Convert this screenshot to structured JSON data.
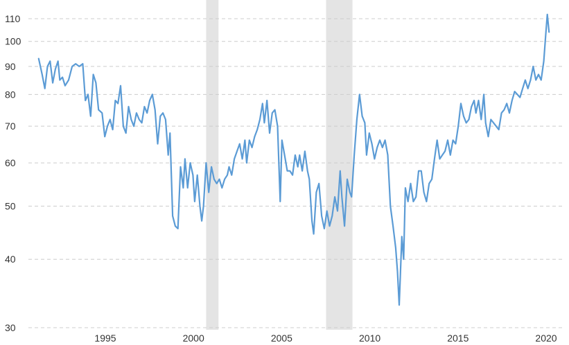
{
  "chart_data": {
    "type": "line",
    "title": "",
    "xlabel": "",
    "ylabel": "",
    "y_scale": "log",
    "ylim": [
      30,
      115
    ],
    "xlim": [
      1990.8,
      2020.0
    ],
    "y_ticks": [
      {
        "value": 30,
        "label": "30"
      },
      {
        "value": 40,
        "label": "40"
      },
      {
        "value": 50,
        "label": "50"
      },
      {
        "value": 60,
        "label": "60"
      },
      {
        "value": 70,
        "label": "70"
      },
      {
        "value": 80,
        "label": "80"
      },
      {
        "value": 90,
        "label": "90"
      },
      {
        "value": 100,
        "label": "100"
      },
      {
        "value": 110,
        "label": "110"
      }
    ],
    "x_ticks": [
      {
        "value": 1995,
        "label": "1995"
      },
      {
        "value": 2000,
        "label": "2000"
      },
      {
        "value": 2005,
        "label": "2005"
      },
      {
        "value": 2010,
        "label": "2010"
      },
      {
        "value": 2015,
        "label": "2015"
      },
      {
        "value": 2020,
        "label": "2020"
      }
    ],
    "grid": "horizontal dashed",
    "line_color": "#5b9bd5",
    "shade_color": "#e4e4e4",
    "shaded_periods": [
      {
        "start": 2000.3,
        "end": 2001.0
      },
      {
        "start": 2007.1,
        "end": 2008.6
      }
    ],
    "series": [
      {
        "values": [
          [
            1990.8,
            93
          ],
          [
            1991.0,
            87
          ],
          [
            1991.15,
            82
          ],
          [
            1991.3,
            90
          ],
          [
            1991.45,
            92
          ],
          [
            1991.6,
            84
          ],
          [
            1991.75,
            89
          ],
          [
            1991.9,
            92
          ],
          [
            1992.0,
            85
          ],
          [
            1992.15,
            86
          ],
          [
            1992.3,
            83
          ],
          [
            1992.5,
            85
          ],
          [
            1992.7,
            90
          ],
          [
            1992.9,
            91
          ],
          [
            1993.1,
            90
          ],
          [
            1993.3,
            91
          ],
          [
            1993.45,
            78
          ],
          [
            1993.6,
            80
          ],
          [
            1993.75,
            73
          ],
          [
            1993.9,
            87
          ],
          [
            1994.05,
            84
          ],
          [
            1994.2,
            75
          ],
          [
            1994.4,
            74
          ],
          [
            1994.55,
            67
          ],
          [
            1994.7,
            70
          ],
          [
            1994.85,
            72
          ],
          [
            1995.0,
            69
          ],
          [
            1995.15,
            78
          ],
          [
            1995.3,
            77
          ],
          [
            1995.45,
            83
          ],
          [
            1995.6,
            70
          ],
          [
            1995.75,
            68
          ],
          [
            1995.9,
            76
          ],
          [
            1996.05,
            72
          ],
          [
            1996.2,
            70
          ],
          [
            1996.35,
            74
          ],
          [
            1996.5,
            72
          ],
          [
            1996.65,
            71
          ],
          [
            1996.8,
            76
          ],
          [
            1996.95,
            74
          ],
          [
            1997.1,
            78
          ],
          [
            1997.25,
            80
          ],
          [
            1997.4,
            75
          ],
          [
            1997.55,
            65
          ],
          [
            1997.7,
            73
          ],
          [
            1997.85,
            74
          ],
          [
            1998.0,
            72
          ],
          [
            1998.15,
            62
          ],
          [
            1998.25,
            68
          ],
          [
            1998.4,
            48
          ],
          [
            1998.55,
            46
          ],
          [
            1998.7,
            45.5
          ],
          [
            1998.85,
            59
          ],
          [
            1999.0,
            54
          ],
          [
            1999.1,
            61
          ],
          [
            1999.25,
            54
          ],
          [
            1999.4,
            60
          ],
          [
            1999.55,
            57
          ],
          [
            1999.65,
            51
          ],
          [
            1999.8,
            57
          ],
          [
            1999.95,
            50
          ],
          [
            2000.05,
            47
          ],
          [
            2000.15,
            50
          ],
          [
            2000.3,
            60
          ],
          [
            2000.45,
            53
          ],
          [
            2000.6,
            59
          ],
          [
            2000.75,
            56
          ],
          [
            2000.9,
            55
          ],
          [
            2001.05,
            56
          ],
          [
            2001.2,
            54
          ],
          [
            2001.35,
            56
          ],
          [
            2001.5,
            57
          ],
          [
            2001.6,
            59
          ],
          [
            2001.75,
            57
          ],
          [
            2001.9,
            61
          ],
          [
            2002.05,
            63
          ],
          [
            2002.2,
            65
          ],
          [
            2002.35,
            61
          ],
          [
            2002.5,
            66
          ],
          [
            2002.6,
            60
          ],
          [
            2002.75,
            66
          ],
          [
            2002.9,
            64
          ],
          [
            2003.05,
            67
          ],
          [
            2003.2,
            69
          ],
          [
            2003.35,
            72
          ],
          [
            2003.5,
            77
          ],
          [
            2003.6,
            71
          ],
          [
            2003.75,
            78
          ],
          [
            2003.9,
            68
          ],
          [
            2004.05,
            74
          ],
          [
            2004.2,
            75
          ],
          [
            2004.35,
            70
          ],
          [
            2004.5,
            51
          ],
          [
            2004.6,
            66
          ],
          [
            2004.75,
            62
          ],
          [
            2004.9,
            58
          ],
          [
            2005.05,
            58
          ],
          [
            2005.2,
            57
          ],
          [
            2005.35,
            62
          ],
          [
            2005.5,
            59
          ],
          [
            2005.6,
            62
          ],
          [
            2005.75,
            58
          ],
          [
            2005.9,
            63
          ],
          [
            2006.05,
            58
          ],
          [
            2006.15,
            56
          ],
          [
            2006.3,
            47
          ],
          [
            2006.4,
            44.5
          ],
          [
            2006.55,
            53
          ],
          [
            2006.7,
            55
          ],
          [
            2006.85,
            48
          ],
          [
            2007.0,
            45.5
          ],
          [
            2007.15,
            49
          ],
          [
            2007.3,
            46
          ],
          [
            2007.45,
            48
          ],
          [
            2007.6,
            52
          ],
          [
            2007.75,
            49
          ],
          [
            2007.9,
            58
          ],
          [
            2008.0,
            52
          ],
          [
            2008.15,
            46
          ],
          [
            2008.3,
            56
          ],
          [
            2008.45,
            53
          ],
          [
            2008.55,
            52
          ],
          [
            2008.7,
            62
          ],
          [
            2008.85,
            72
          ],
          [
            2009.0,
            80
          ],
          [
            2009.15,
            73
          ],
          [
            2009.3,
            71
          ],
          [
            2009.4,
            62
          ],
          [
            2009.55,
            68
          ],
          [
            2009.7,
            65
          ],
          [
            2009.85,
            61
          ],
          [
            2010.0,
            64
          ],
          [
            2010.15,
            66
          ],
          [
            2010.3,
            64
          ],
          [
            2010.45,
            66
          ],
          [
            2010.6,
            62
          ],
          [
            2010.75,
            50
          ],
          [
            2010.9,
            46
          ],
          [
            2011.05,
            42
          ],
          [
            2011.15,
            38
          ],
          [
            2011.25,
            33
          ],
          [
            2011.4,
            44
          ],
          [
            2011.5,
            40
          ],
          [
            2011.6,
            54
          ],
          [
            2011.75,
            51
          ],
          [
            2011.9,
            55
          ],
          [
            2012.05,
            51
          ],
          [
            2012.2,
            52
          ],
          [
            2012.35,
            58
          ],
          [
            2012.5,
            58
          ],
          [
            2012.65,
            53
          ],
          [
            2012.8,
            51
          ],
          [
            2012.95,
            55
          ],
          [
            2013.1,
            56
          ],
          [
            2013.25,
            61
          ],
          [
            2013.4,
            66
          ],
          [
            2013.55,
            61
          ],
          [
            2013.7,
            62
          ],
          [
            2013.85,
            63
          ],
          [
            2014.0,
            66
          ],
          [
            2014.15,
            62
          ],
          [
            2014.3,
            66
          ],
          [
            2014.45,
            65
          ],
          [
            2014.6,
            70
          ],
          [
            2014.75,
            77
          ],
          [
            2014.9,
            73
          ],
          [
            2015.05,
            71
          ],
          [
            2015.2,
            72
          ],
          [
            2015.35,
            76
          ],
          [
            2015.5,
            78
          ],
          [
            2015.6,
            74
          ],
          [
            2015.75,
            78
          ],
          [
            2015.9,
            72
          ],
          [
            2016.05,
            80
          ],
          [
            2016.15,
            71
          ],
          [
            2016.3,
            67
          ],
          [
            2016.45,
            72
          ],
          [
            2016.6,
            71
          ],
          [
            2016.75,
            70
          ],
          [
            2016.9,
            69
          ],
          [
            2017.05,
            74
          ],
          [
            2017.2,
            75
          ],
          [
            2017.35,
            77
          ],
          [
            2017.5,
            74
          ],
          [
            2017.65,
            78
          ],
          [
            2017.8,
            81
          ],
          [
            2017.95,
            80
          ],
          [
            2018.1,
            79
          ],
          [
            2018.25,
            82
          ],
          [
            2018.4,
            85
          ],
          [
            2018.55,
            82
          ],
          [
            2018.7,
            85
          ],
          [
            2018.85,
            90
          ],
          [
            2019.0,
            85
          ],
          [
            2019.15,
            87
          ],
          [
            2019.3,
            85
          ],
          [
            2019.45,
            92
          ],
          [
            2019.55,
            102
          ],
          [
            2019.65,
            112
          ],
          [
            2019.75,
            104
          ]
        ]
      }
    ]
  }
}
